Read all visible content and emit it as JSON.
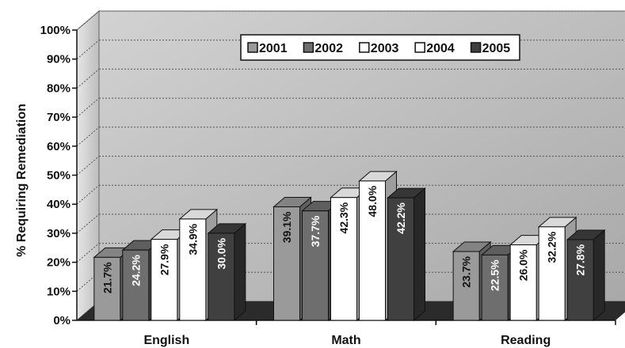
{
  "chart_data": {
    "type": "bar",
    "categories": [
      "English",
      "Math",
      "Reading"
    ],
    "series": [
      {
        "name": "2001",
        "values": [
          21.7,
          39.1,
          23.7
        ],
        "labels": [
          "21.7%",
          "39.1%",
          "23.7%"
        ],
        "color": "#9a9a9a"
      },
      {
        "name": "2002",
        "values": [
          24.2,
          37.7,
          22.5
        ],
        "labels": [
          "24.2%",
          "37.7%",
          "22.5%"
        ],
        "color": "#6e6e6e"
      },
      {
        "name": "2003",
        "values": [
          27.9,
          42.3,
          26.0
        ],
        "labels": [
          "27.9%",
          "42.3%",
          "26.0%"
        ],
        "color": "#ffffff"
      },
      {
        "name": "2004",
        "values": [
          34.9,
          48.0,
          32.2
        ],
        "labels": [
          "34.9%",
          "48.0%",
          "32.2%"
        ],
        "color": "#ffffff"
      },
      {
        "name": "2005",
        "values": [
          30.0,
          42.2,
          27.8
        ],
        "labels": [
          "30.0%",
          "42.2%",
          "27.8%"
        ],
        "color": "#404040"
      }
    ],
    "ylabel": "% Requiring Remediation",
    "xlabel": "",
    "ylim": [
      0,
      100
    ],
    "yticks": [
      "0%",
      "10%",
      "20%",
      "30%",
      "40%",
      "50%",
      "60%",
      "70%",
      "80%",
      "90%",
      "100%"
    ],
    "grid": true,
    "legend": "top-center",
    "three_d": true
  }
}
